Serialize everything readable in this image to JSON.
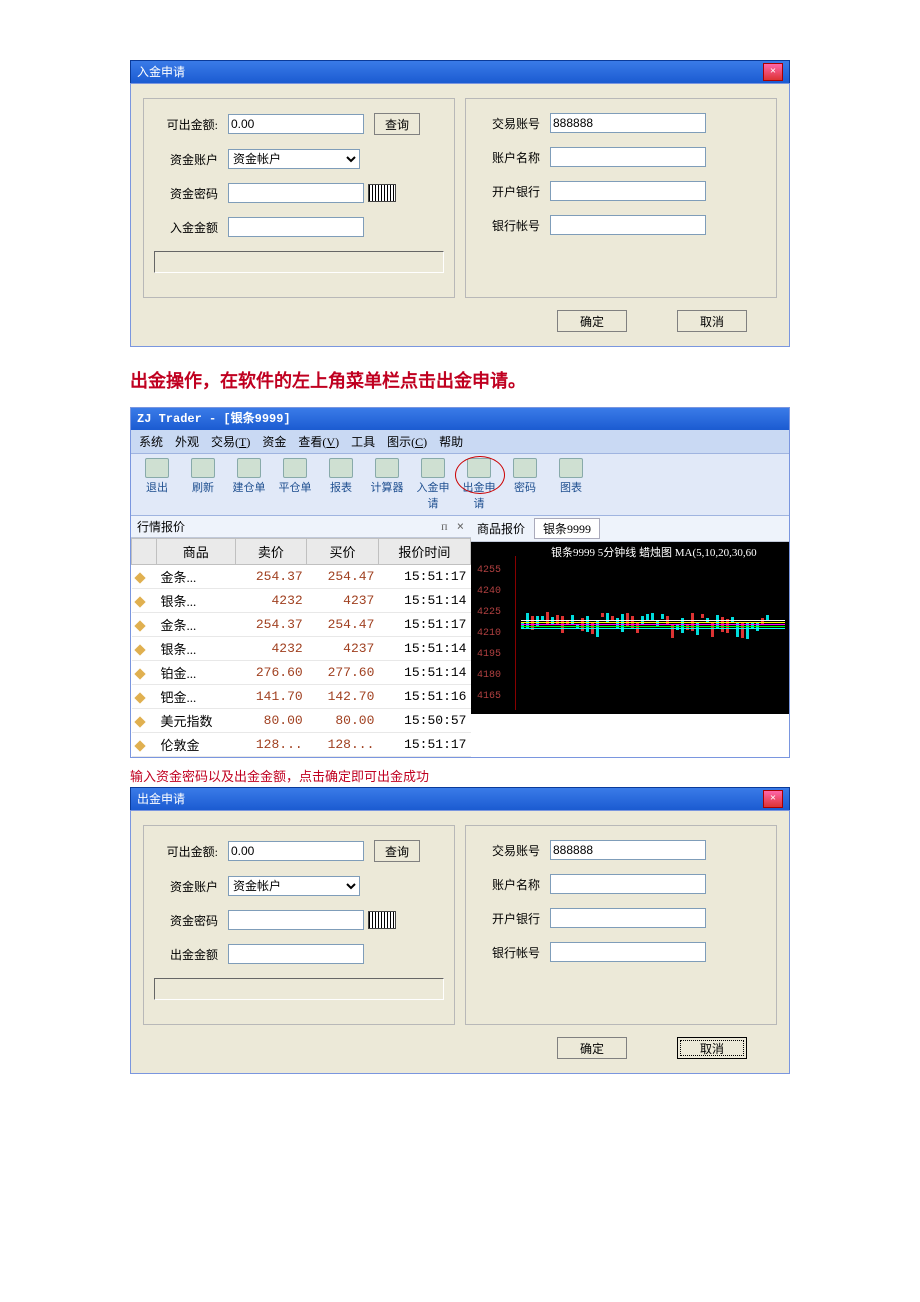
{
  "dialog1": {
    "title": "入金申请",
    "left": {
      "available_label": "可出金额:",
      "available_value": "0.00",
      "query_btn": "查询",
      "account_label": "资金账户",
      "account_option": "资金帐户",
      "password_label": "资金密码",
      "amount_label": "入金金额"
    },
    "right": {
      "acct_no_label": "交易账号",
      "acct_no_value": "888888",
      "acct_name_label": "账户名称",
      "bank_label": "开户银行",
      "bank_acct_label": "银行帐号"
    },
    "ok": "确定",
    "cancel": "取消"
  },
  "instr1": "出金操作，在软件的左上角菜单栏点击出金申请。",
  "trader": {
    "title": "ZJ Trader - [银条9999]",
    "menus": [
      "系统",
      "外观",
      "交易(T)",
      "资金",
      "查看(V)",
      "工具",
      "图示(C)",
      "帮助"
    ],
    "tools": [
      "退出",
      "刷新",
      "建仓单",
      "平仓单",
      "报表",
      "计算器",
      "入金申请",
      "出金申请",
      "密码",
      "图表"
    ],
    "circled_tool_index": 7,
    "quote_header": "行情报价",
    "columns": [
      "商品",
      "卖价",
      "买价",
      "报价时间"
    ],
    "rows": [
      {
        "name": "金条...",
        "sell": "254.37",
        "buy": "254.47",
        "time": "15:51:17"
      },
      {
        "name": "银条...",
        "sell": "4232",
        "buy": "4237",
        "time": "15:51:14"
      },
      {
        "name": "金条...",
        "sell": "254.37",
        "buy": "254.47",
        "time": "15:51:17"
      },
      {
        "name": "银条...",
        "sell": "4232",
        "buy": "4237",
        "time": "15:51:14"
      },
      {
        "name": "铂金...",
        "sell": "276.60",
        "buy": "277.60",
        "time": "15:51:14"
      },
      {
        "name": "钯金...",
        "sell": "141.70",
        "buy": "142.70",
        "time": "15:51:16"
      },
      {
        "name": "美元指数",
        "sell": "80.00",
        "buy": "80.00",
        "time": "15:50:57"
      },
      {
        "name": "伦敦金",
        "sell": "128...",
        "buy": "128...",
        "time": "15:51:17"
      }
    ],
    "chart_tab_label": "商品报价",
    "chart_tab_active": "银条9999",
    "chart_title": "银条9999 5分钟线 蜡烛图 MA(5,10,20,30,60",
    "yaxis": [
      "4255",
      "4240",
      "4225",
      "4210",
      "4195",
      "4180",
      "4165"
    ],
    "line_colors": [
      "#fff",
      "#ff0",
      "#f0f",
      "#0f0",
      "#0ff"
    ],
    "chart_bg": "#000000"
  },
  "instr2": "输入资金密码以及出金金额，点击确定即可出金成功",
  "dialog2": {
    "title": "出金申请",
    "left": {
      "available_label": "可出金额:",
      "available_value": "0.00",
      "query_btn": "查询",
      "account_label": "资金账户",
      "account_option": "资金帐户",
      "password_label": "资金密码",
      "amount_label": "出金金额"
    },
    "right": {
      "acct_no_label": "交易账号",
      "acct_no_value": "888888",
      "acct_name_label": "账户名称",
      "bank_label": "开户银行",
      "bank_acct_label": "银行帐号"
    },
    "ok": "确定",
    "cancel": "取消"
  }
}
